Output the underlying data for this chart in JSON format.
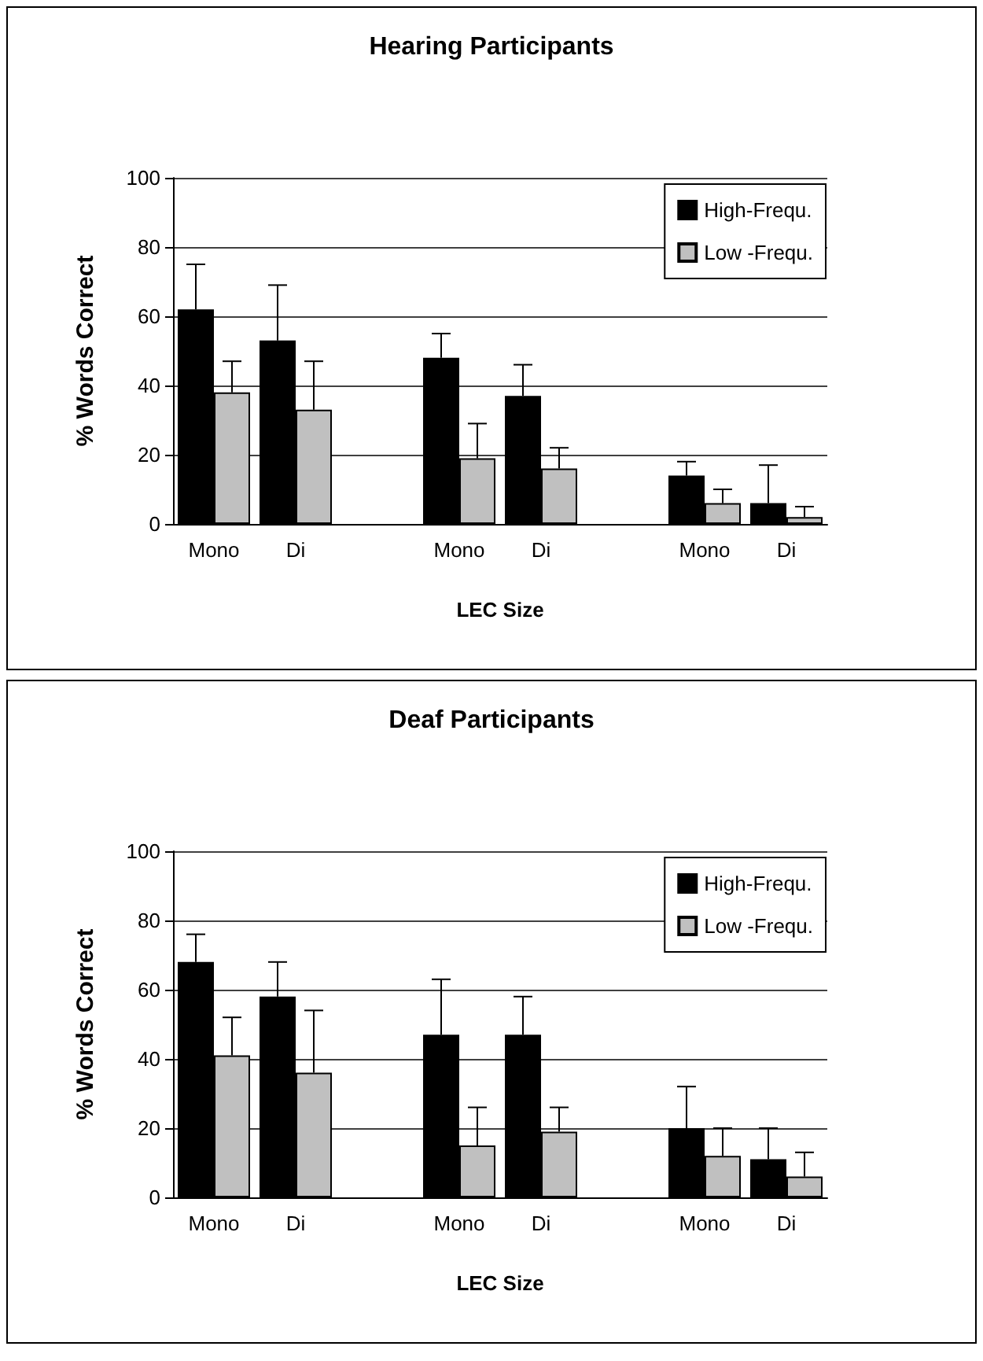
{
  "chart_data": [
    {
      "type": "bar",
      "title": "Hearing Participants",
      "xlabel": "LEC Size",
      "ylabel": "% Words Correct",
      "categories": [
        "Mono",
        "Di",
        null,
        "Mono",
        "Di",
        null,
        "Mono",
        "Di"
      ],
      "series": [
        {
          "name": "High-Frequ.",
          "color": "#000000",
          "values": [
            62,
            53,
            null,
            48,
            37,
            null,
            14,
            6
          ],
          "errors": [
            [
              62,
              75
            ],
            [
              53,
              69
            ],
            null,
            [
              48,
              55
            ],
            [
              37,
              46
            ],
            null,
            [
              14,
              18
            ],
            [
              6,
              17
            ]
          ]
        },
        {
          "name": "Low -Frequ.",
          "color": "#c0c0c0",
          "values": [
            38,
            33,
            null,
            19,
            16,
            null,
            6,
            2
          ],
          "errors": [
            [
              38,
              47
            ],
            [
              33,
              47
            ],
            null,
            [
              19,
              29
            ],
            [
              16,
              22
            ],
            null,
            [
              6,
              10
            ],
            [
              2,
              5
            ]
          ]
        }
      ],
      "ylim": [
        0,
        100
      ],
      "yticks": [
        0,
        20,
        40,
        60,
        80,
        100
      ],
      "grid": "y",
      "legend": "top right"
    },
    {
      "type": "bar",
      "title": "Deaf Participants",
      "xlabel": "LEC Size",
      "ylabel": "% Words Correct",
      "categories": [
        "Mono",
        "Di",
        null,
        "Mono",
        "Di",
        null,
        "Mono",
        "Di"
      ],
      "series": [
        {
          "name": "High-Frequ.",
          "color": "#000000",
          "values": [
            68,
            58,
            null,
            47,
            47,
            null,
            20,
            11
          ],
          "errors": [
            [
              68,
              76
            ],
            [
              58,
              68
            ],
            null,
            [
              47,
              63
            ],
            [
              47,
              58
            ],
            null,
            [
              20,
              32
            ],
            [
              11,
              20
            ]
          ]
        },
        {
          "name": "Low -Frequ.",
          "color": "#c0c0c0",
          "values": [
            41,
            36,
            null,
            15,
            19,
            null,
            12,
            6
          ],
          "errors": [
            [
              41,
              52
            ],
            [
              36,
              54
            ],
            null,
            [
              15,
              26
            ],
            [
              19,
              26
            ],
            null,
            [
              12,
              20
            ],
            [
              6,
              13
            ]
          ]
        }
      ],
      "ylim": [
        0,
        100
      ],
      "yticks": [
        0,
        20,
        40,
        60,
        80,
        100
      ],
      "grid": "y",
      "legend": "top right"
    }
  ]
}
